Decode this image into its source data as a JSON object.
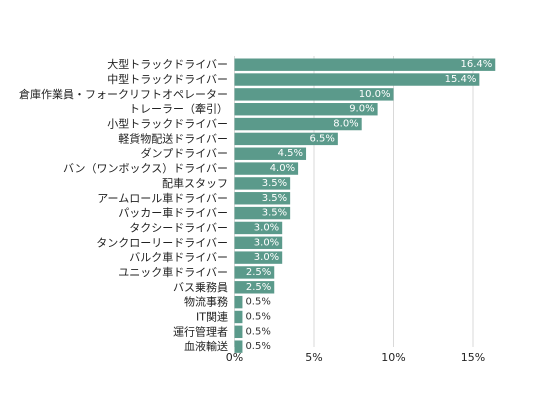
{
  "chart_data": {
    "type": "bar",
    "orientation": "horizontal",
    "categories": [
      "大型トラックドライバー",
      "中型トラックドライバー",
      "倉庫作業員・フォークリフトオペレーター",
      "トレーラー（牽引）",
      "小型トラックドライバー",
      "軽貨物配送ドライバー",
      "ダンプドライバー",
      "バン（ワンボックス）ドライバー",
      "配車スタッフ",
      "アームロール車ドライバー",
      "パッカー車ドライバー",
      "タクシードライバー",
      "タンクローリードライバー",
      "バルク車ドライバー",
      "ユニック車ドライバー",
      "バス乗務員",
      "物流事務",
      "IT関連",
      "運行管理者",
      "血液輸送"
    ],
    "values": [
      16.4,
      15.4,
      10.0,
      9.0,
      8.0,
      6.5,
      4.5,
      4.0,
      3.5,
      3.5,
      3.5,
      3.0,
      3.0,
      3.0,
      2.5,
      2.5,
      0.5,
      0.5,
      0.5,
      0.5
    ],
    "data_labels": [
      "16.4%",
      "15.4%",
      "10.0%",
      "9.0%",
      "8.0%",
      "6.5%",
      "4.5%",
      "4.0%",
      "3.5%",
      "3.5%",
      "3.5%",
      "3.0%",
      "3.0%",
      "3.0%",
      "2.5%",
      "2.5%",
      "0.5%",
      "0.5%",
      "0.5%",
      "0.5%"
    ],
    "x_ticks": [
      0,
      5,
      10,
      15
    ],
    "x_tick_labels": [
      "0%",
      "5%",
      "10%",
      "15%"
    ],
    "xlim": [
      0,
      17.5
    ],
    "grid": true,
    "bar_color": "#5b9a8b",
    "grid_color": "#d9d9d9",
    "label_inside_color": "#ffffff",
    "label_outside_color": "#333333",
    "category_color": "#222222"
  }
}
